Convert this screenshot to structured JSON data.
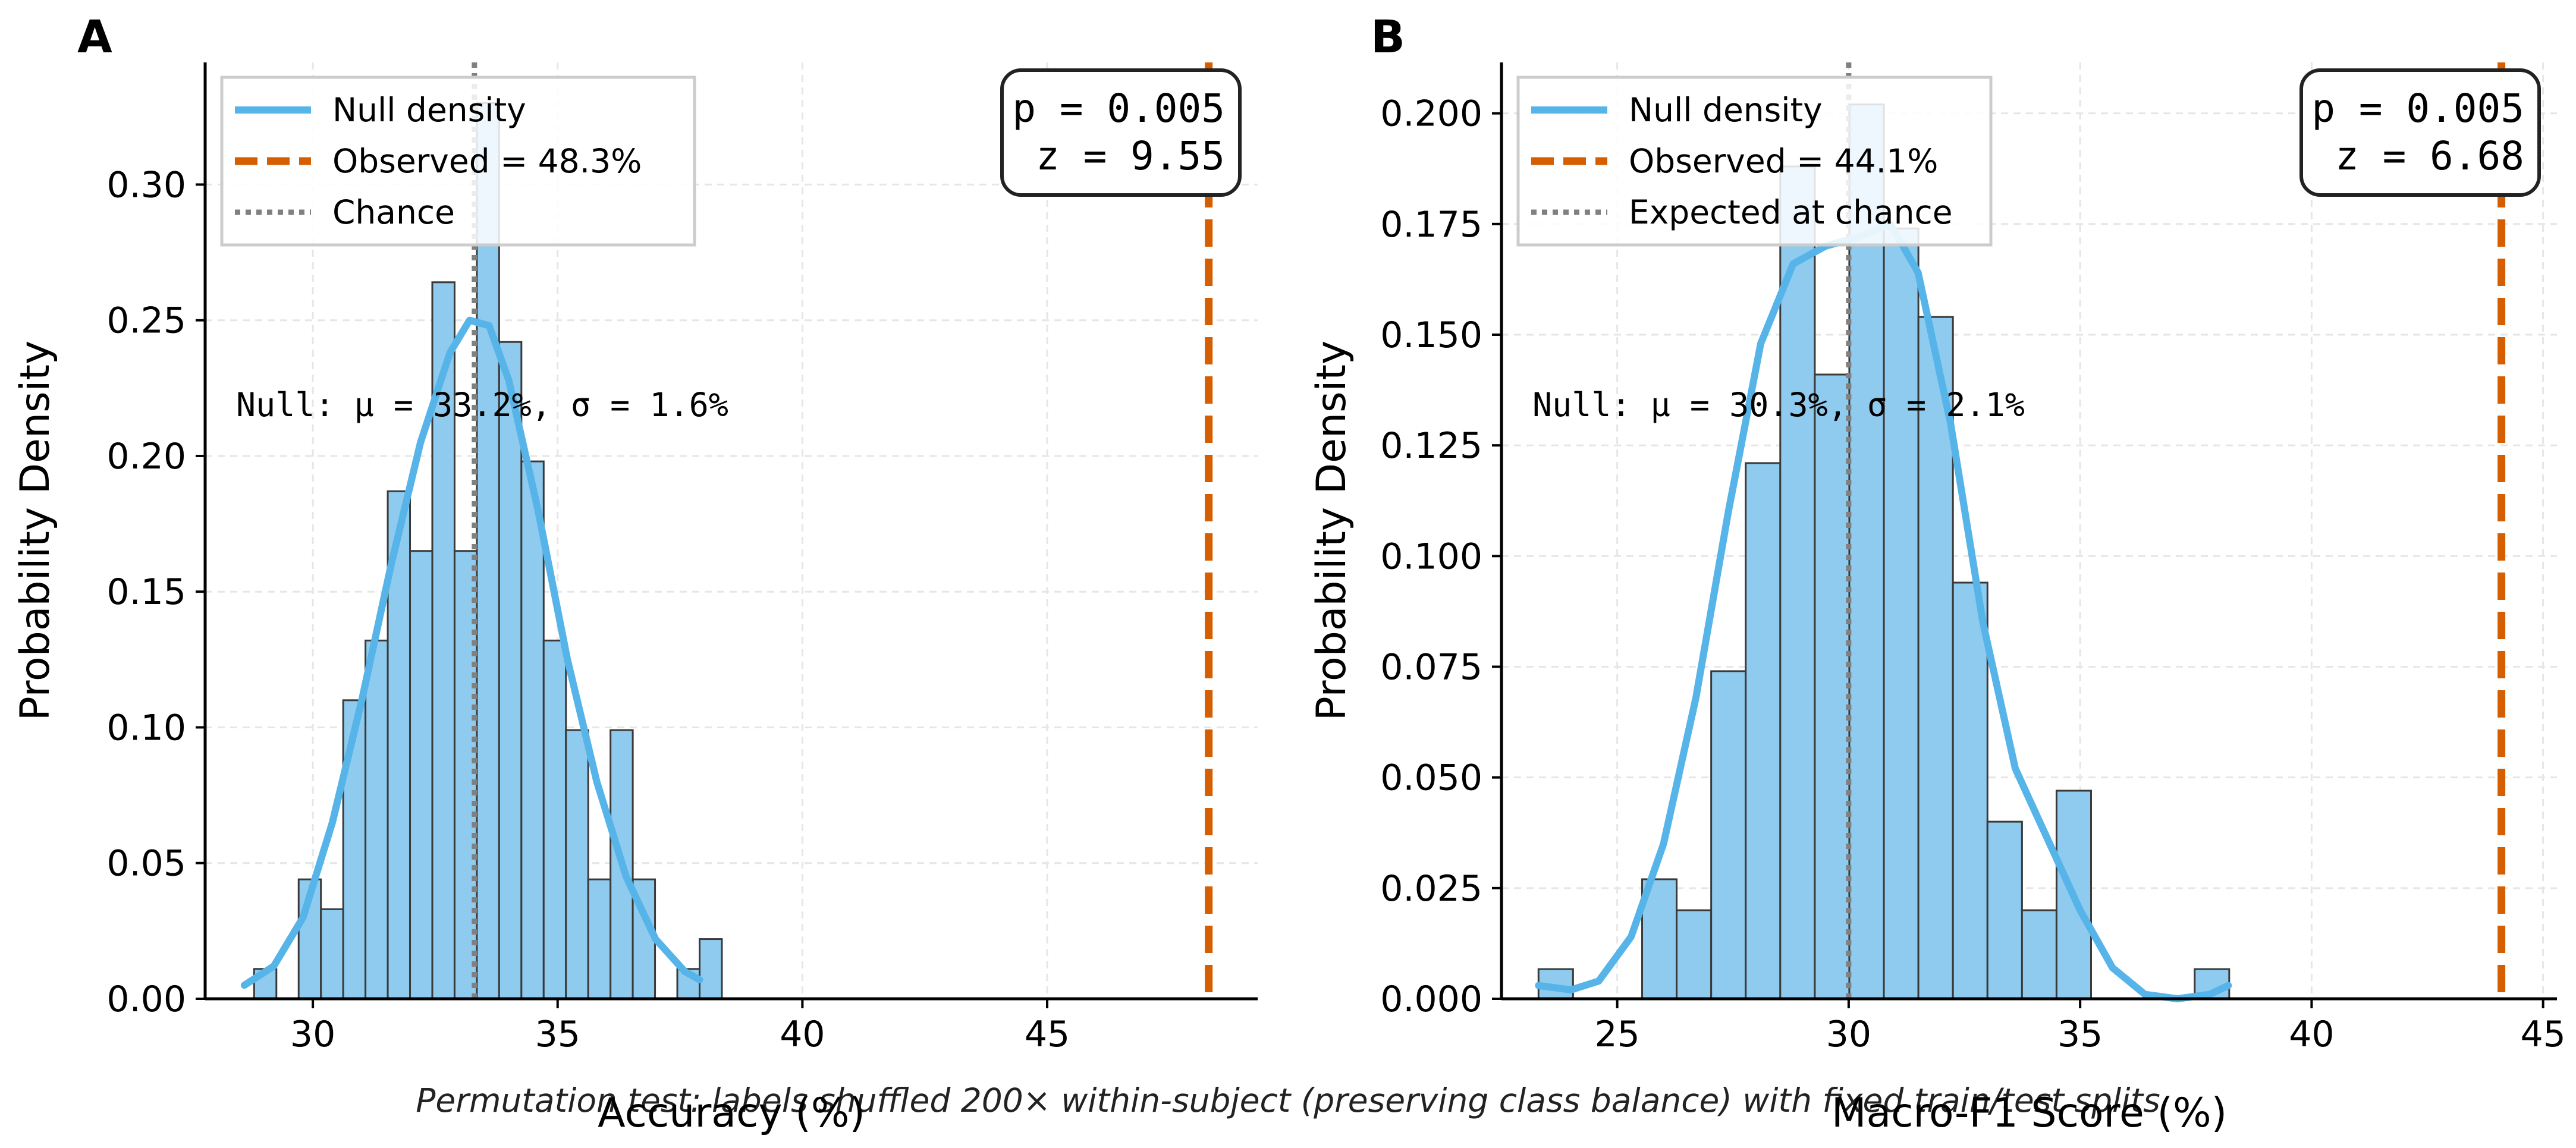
{
  "figure": {
    "caption": "Permutation test: labels shuffled 200× within-subject (preserving class balance) with fixed train/test splits"
  },
  "colors": {
    "bar_fill": "#8ecbee",
    "bar_edge": "#3a3a3a",
    "density": "#56b4e9",
    "observed": "#d55e00",
    "chance": "#808080",
    "grid": "#e6e6e6"
  },
  "chart_data": [
    {
      "type": "bar",
      "panel": "A",
      "xlabel": "Accuracy (%)",
      "ylabel": "Probability Density",
      "xlim": [
        27.8,
        49.3
      ],
      "ylim": [
        0,
        0.345
      ],
      "xticks": [
        30,
        35,
        40,
        45
      ],
      "yticks": [
        0.0,
        0.05,
        0.1,
        0.15,
        0.2,
        0.25,
        0.3
      ],
      "ytick_labels": [
        "0.00",
        "0.05",
        "0.10",
        "0.15",
        "0.20",
        "0.25",
        "0.30"
      ],
      "grid": true,
      "legend_position": "upper-left",
      "histogram": {
        "bin_start": 28.8,
        "bin_width": 0.455,
        "heights": [
          0.011,
          0.0,
          0.044,
          0.033,
          0.11,
          0.132,
          0.187,
          0.165,
          0.264,
          0.165,
          0.33,
          0.242,
          0.198,
          0.132,
          0.099,
          0.044,
          0.099,
          0.044,
          0.0,
          0.011,
          0.022
        ]
      },
      "density": {
        "name": "Null density",
        "x": [
          28.6,
          29.2,
          29.8,
          30.4,
          31.0,
          31.6,
          32.2,
          32.8,
          33.2,
          33.6,
          34.0,
          34.6,
          35.2,
          35.8,
          36.4,
          37.0,
          37.6,
          37.9
        ],
        "y": [
          0.005,
          0.012,
          0.03,
          0.065,
          0.11,
          0.16,
          0.205,
          0.238,
          0.25,
          0.248,
          0.228,
          0.18,
          0.125,
          0.08,
          0.045,
          0.022,
          0.01,
          0.007
        ]
      },
      "observed": {
        "value": 48.3,
        "legend": "Observed = 48.3%"
      },
      "chance": {
        "value": 33.3,
        "legend": "Chance"
      },
      "legend_density": "Null density",
      "stats": {
        "p_line": "p = 0.005",
        "z_line": "z = 9.55"
      },
      "null_annotation": "Null: μ = 33.2%, σ = 1.6%"
    },
    {
      "type": "bar",
      "panel": "B",
      "xlabel": "Macro-F1 Score (%)",
      "ylabel": "Probability Density",
      "xlim": [
        22.5,
        45.3
      ],
      "ylim": [
        0,
        0.2115
      ],
      "xticks": [
        25,
        30,
        35,
        40,
        45
      ],
      "yticks": [
        0.0,
        0.025,
        0.05,
        0.075,
        0.1,
        0.125,
        0.15,
        0.175,
        0.2
      ],
      "ytick_labels": [
        "0.000",
        "0.025",
        "0.050",
        "0.075",
        "0.100",
        "0.125",
        "0.150",
        "0.175",
        "0.200"
      ],
      "grid": true,
      "legend_position": "upper-left",
      "histogram": {
        "bin_start": 23.3,
        "bin_width": 0.746,
        "heights": [
          0.0067,
          0.0,
          0.0,
          0.027,
          0.02,
          0.074,
          0.121,
          0.188,
          0.141,
          0.202,
          0.174,
          0.154,
          0.094,
          0.04,
          0.02,
          0.047,
          0.0,
          0.0,
          0.0,
          0.0067
        ]
      },
      "density": {
        "name": "Null density",
        "x": [
          23.3,
          24.0,
          24.6,
          25.3,
          26.0,
          26.7,
          27.4,
          28.1,
          28.8,
          29.5,
          30.2,
          30.9,
          31.5,
          32.2,
          32.9,
          33.6,
          34.3,
          35.0,
          35.7,
          36.4,
          37.1,
          37.8,
          38.2
        ],
        "y": [
          0.003,
          0.002,
          0.004,
          0.014,
          0.035,
          0.068,
          0.11,
          0.148,
          0.166,
          0.17,
          0.172,
          0.175,
          0.164,
          0.13,
          0.085,
          0.052,
          0.036,
          0.02,
          0.007,
          0.001,
          0.0,
          0.001,
          0.003
        ]
      },
      "observed": {
        "value": 44.1,
        "legend": "Observed = 44.1%"
      },
      "chance": {
        "value": 30.0,
        "legend": "Expected at chance"
      },
      "legend_density": "Null density",
      "stats": {
        "p_line": "p = 0.005",
        "z_line": "z = 6.68"
      },
      "null_annotation": "Null: μ = 30.3%, σ = 2.1%"
    }
  ]
}
